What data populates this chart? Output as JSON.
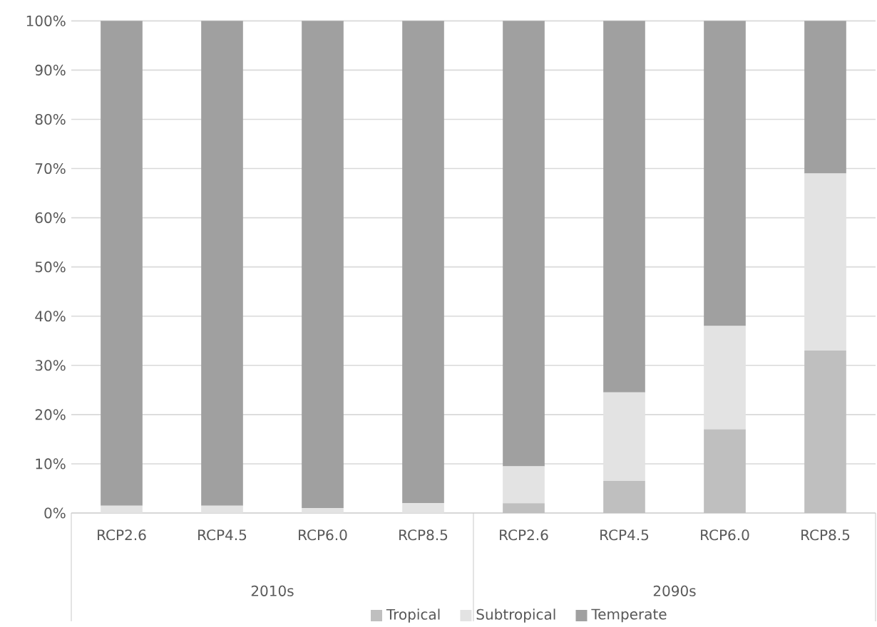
{
  "chart_data": {
    "type": "bar",
    "stacked": true,
    "categories": [
      "RCP2.6",
      "RCP4.5",
      "RCP6.0",
      "RCP8.5",
      "RCP2.6",
      "RCP4.5",
      "RCP6.0",
      "RCP8.5"
    ],
    "series": [
      {
        "name": "Tropical",
        "color": "#bfbfbf",
        "values": [
          0,
          0,
          0,
          0,
          2,
          6.5,
          17,
          33
        ]
      },
      {
        "name": "Subtropical",
        "color": "#e3e3e3",
        "values": [
          1.5,
          1.5,
          1,
          2,
          7.5,
          18,
          21,
          36
        ]
      },
      {
        "name": "Temperate",
        "color": "#a0a0a0",
        "values": [
          98.5,
          98.5,
          99,
          98,
          90.5,
          75.5,
          62,
          31
        ]
      }
    ],
    "ylim": [
      0,
      100
    ],
    "yticks": [
      {
        "value": 0,
        "label": "0%"
      },
      {
        "value": 10,
        "label": "10%"
      },
      {
        "value": 20,
        "label": "20%"
      },
      {
        "value": 30,
        "label": "30%"
      },
      {
        "value": 40,
        "label": "40%"
      },
      {
        "value": 50,
        "label": "50%"
      },
      {
        "value": 60,
        "label": "60%"
      },
      {
        "value": 70,
        "label": "70%"
      },
      {
        "value": 80,
        "label": "80%"
      },
      {
        "value": 90,
        "label": "90%"
      },
      {
        "value": 100,
        "label": "100%"
      }
    ],
    "grid": "y",
    "legend": "bottom",
    "annotations": [
      "2010s",
      "2090s"
    ]
  }
}
